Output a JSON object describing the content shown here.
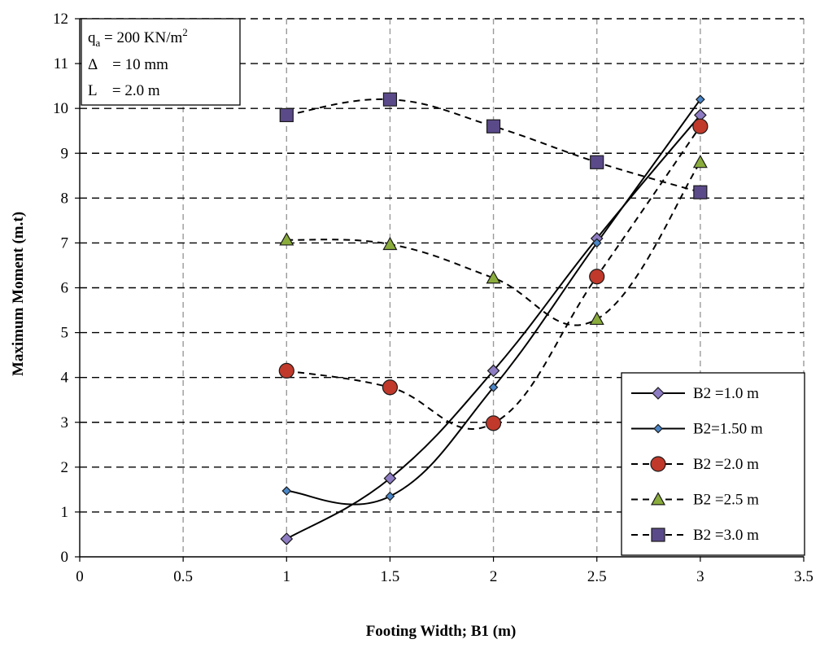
{
  "chart_data": {
    "type": "line",
    "title": "",
    "xlabel": "Footing Width; B1 (m)",
    "ylabel": "Maximum Moment (m.t)",
    "xlim": [
      0,
      3.5
    ],
    "ylim": [
      0,
      12
    ],
    "x_ticks": [
      "0",
      "0.5",
      "1",
      "1.5",
      "2",
      "2.5",
      "3",
      "3.5"
    ],
    "y_ticks": [
      "0",
      "1",
      "2",
      "3",
      "4",
      "5",
      "6",
      "7",
      "8",
      "9",
      "10",
      "11",
      "12"
    ],
    "grid": true,
    "legend_position": "bottom-right",
    "annotation": {
      "line1_prefix": "q",
      "line1_sub": "a",
      "line1_rest": " = 200 KN/m",
      "line1_sup": "2",
      "line2": "Δ    = 10 mm",
      "line3": "L    = 2.0 m"
    },
    "series": [
      {
        "name": "B2 =1.0 m",
        "x": [
          1,
          1.5,
          2,
          2.5,
          3
        ],
        "y": [
          0.4,
          1.75,
          4.15,
          7.1,
          9.85
        ],
        "line": "solid",
        "marker": "diamond",
        "marker_color": "#8e7cc3",
        "marker_size": 7
      },
      {
        "name": "B2=1.50 m",
        "x": [
          1,
          1.5,
          2,
          2.5,
          3
        ],
        "y": [
          1.47,
          1.35,
          3.78,
          7.0,
          10.2
        ],
        "line": "solid",
        "marker": "diamond",
        "marker_color": "#4a86c8",
        "marker_size": 5
      },
      {
        "name": "B2 =2.0 m",
        "x": [
          1,
          1.5,
          2,
          2.5,
          3
        ],
        "y": [
          4.15,
          3.78,
          2.98,
          6.25,
          9.6
        ],
        "line": "dashed",
        "marker": "circle",
        "marker_color": "#c0392b",
        "marker_size": 9
      },
      {
        "name": "B2 =2.5 m",
        "x": [
          1,
          1.5,
          2,
          2.5,
          3
        ],
        "y": [
          7.07,
          6.97,
          6.22,
          5.3,
          8.8
        ],
        "line": "dashed",
        "marker": "triangle",
        "marker_color": "#8aac3c",
        "marker_size": 8
      },
      {
        "name": "B2 =3.0 m",
        "x": [
          1,
          1.5,
          2,
          2.5,
          3
        ],
        "y": [
          9.85,
          10.2,
          9.6,
          8.8,
          8.13
        ],
        "line": "dashed",
        "marker": "square",
        "marker_color": "#5b4a8a",
        "marker_size": 8
      }
    ]
  }
}
